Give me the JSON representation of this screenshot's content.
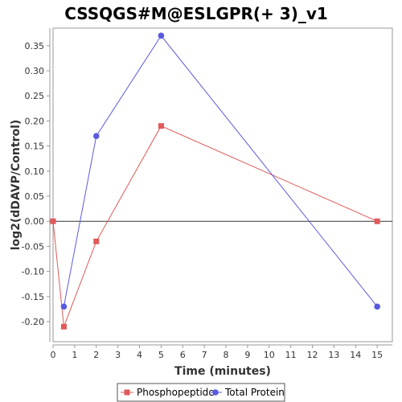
{
  "chart_data": {
    "type": "line",
    "title": "CSSQGS#M@ESLGPR(+ 3)_v1",
    "xlabel": "Time (minutes)",
    "ylabel": "log2(dDAVP/Control)",
    "xlim": [
      0,
      15.7
    ],
    "ylim": [
      -0.24,
      0.385
    ],
    "x_ticks": [
      0,
      1,
      2,
      3,
      4,
      5,
      6,
      7,
      8,
      9,
      10,
      11,
      12,
      13,
      14,
      15
    ],
    "y_ticks": [
      -0.2,
      -0.15,
      -0.1,
      -0.05,
      0.0,
      0.05,
      0.1,
      0.15,
      0.2,
      0.25,
      0.3,
      0.35
    ],
    "y_tick_labels": [
      "-0.20",
      "-0.15",
      "-0.10",
      "-0.05",
      "0.00",
      "0.05",
      "0.10",
      "0.15",
      "0.20",
      "0.25",
      "0.30",
      "0.35"
    ],
    "zero_line": true,
    "grid": false,
    "legend_position": "bottom",
    "series": [
      {
        "name": "Phosphopeptide",
        "color": "#e05a5a",
        "marker": "square",
        "x": [
          0,
          0.5,
          2,
          5,
          15
        ],
        "y": [
          0.0,
          -0.21,
          -0.04,
          0.19,
          0.0
        ]
      },
      {
        "name": "Total Protein",
        "color": "#5a5ae0",
        "marker": "circle",
        "x": [
          0.5,
          2,
          5,
          15
        ],
        "y": [
          -0.17,
          0.17,
          0.37,
          -0.17
        ]
      }
    ]
  }
}
